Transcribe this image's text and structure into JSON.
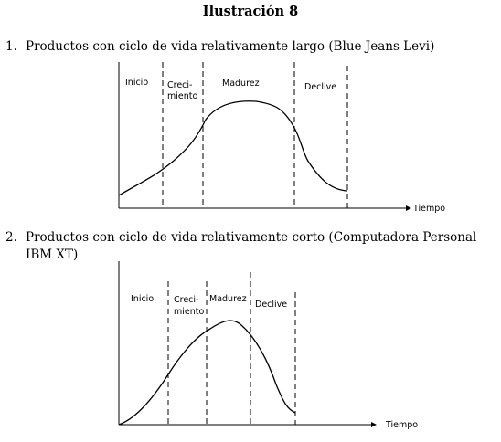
{
  "title": "Ilustración 8",
  "items": [
    {
      "number": "1.",
      "text_lines": [
        "Productos con ciclo de vida relativamente largo (Blue Jeans Levi)"
      ]
    },
    {
      "number": "2.",
      "text_lines": [
        "Productos con ciclo de vida relativamente corto (Computadora Personal",
        "IBM XT)"
      ]
    }
  ],
  "charts": [
    {
      "stages": [
        "Inicio",
        "Creci-",
        "miento",
        "Madurez",
        "Declive"
      ],
      "x_label": "Tiempo"
    },
    {
      "stages": [
        "Inicio",
        "Creci-",
        "miento",
        "Madurez",
        "Declive"
      ],
      "x_label": "Tiempo"
    }
  ]
}
